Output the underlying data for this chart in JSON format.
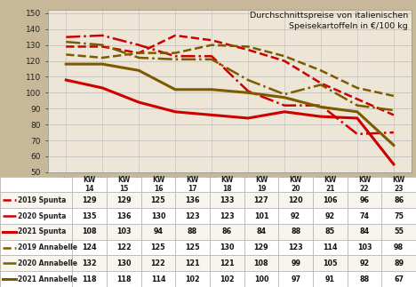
{
  "title": "Durchschnittspreise von italienischen\nSpeisekartoffeln in €/100 kg",
  "x_labels": [
    "KW\n14",
    "KW\n15",
    "KW\n16",
    "KW\n17",
    "KW\n18",
    "KW\n19",
    "KW\n20",
    "KW\n21",
    "KW\n22",
    "KW\n23"
  ],
  "x_values": [
    0,
    1,
    2,
    3,
    4,
    5,
    6,
    7,
    8,
    9
  ],
  "series": [
    {
      "label": "2019 Spunta",
      "values": [
        129,
        129,
        125,
        136,
        133,
        127,
        120,
        106,
        96,
        86
      ],
      "color": "#cc0000",
      "linestyle": "--",
      "linewidth": 1.8
    },
    {
      "label": "2020 Spunta",
      "values": [
        135,
        136,
        130,
        123,
        123,
        101,
        92,
        92,
        74,
        75
      ],
      "color": "#cc0000",
      "linestyle": "-.",
      "linewidth": 1.8
    },
    {
      "label": "2021 Spunta",
      "values": [
        108,
        103,
        94,
        88,
        86,
        84,
        88,
        85,
        84,
        55
      ],
      "color": "#cc0000",
      "linestyle": "-",
      "linewidth": 2.2
    },
    {
      "label": "2019 Annabelle",
      "values": [
        124,
        122,
        125,
        125,
        130,
        129,
        123,
        114,
        103,
        98
      ],
      "color": "#7b5b00",
      "linestyle": "--",
      "linewidth": 1.8
    },
    {
      "label": "2020 Annabelle",
      "values": [
        132,
        130,
        122,
        121,
        121,
        108,
        99,
        105,
        92,
        89
      ],
      "color": "#7b5b00",
      "linestyle": "-.",
      "linewidth": 1.8
    },
    {
      "label": "2021 Annabelle",
      "values": [
        118,
        118,
        114,
        102,
        102,
        100,
        97,
        91,
        88,
        67
      ],
      "color": "#7b5b00",
      "linestyle": "-",
      "linewidth": 2.2
    }
  ],
  "ylim": [
    50,
    152
  ],
  "yticks": [
    50,
    60,
    70,
    80,
    90,
    100,
    110,
    120,
    130,
    140,
    150
  ],
  "bg_color": "#c8b89a",
  "plot_bg": "#ede5d5",
  "grid_color": "#bbbbbb",
  "table_rows": [
    [
      "2019 Spunta",
      "129",
      "129",
      "125",
      "136",
      "133",
      "127",
      "120",
      "106",
      "96",
      "86"
    ],
    [
      "2020 Spunta",
      "135",
      "136",
      "130",
      "123",
      "123",
      "101",
      "92",
      "92",
      "74",
      "75"
    ],
    [
      "2021 Spunta",
      "108",
      "103",
      "94",
      "88",
      "86",
      "84",
      "88",
      "85",
      "84",
      "55"
    ],
    [
      "2019 Annabelle",
      "124",
      "122",
      "125",
      "125",
      "130",
      "129",
      "123",
      "114",
      "103",
      "98"
    ],
    [
      "2020 Annabelle",
      "132",
      "130",
      "122",
      "121",
      "121",
      "108",
      "99",
      "105",
      "92",
      "89"
    ],
    [
      "2021 Annabelle",
      "118",
      "118",
      "114",
      "102",
      "102",
      "100",
      "97",
      "91",
      "88",
      "67"
    ]
  ],
  "table_header": [
    "",
    "KW\n14",
    "KW\n15",
    "KW\n16",
    "KW\n17",
    "KW\n18",
    "KW\n19",
    "KW\n20",
    "KW\n21",
    "KW\n22",
    "KW\n23"
  ]
}
